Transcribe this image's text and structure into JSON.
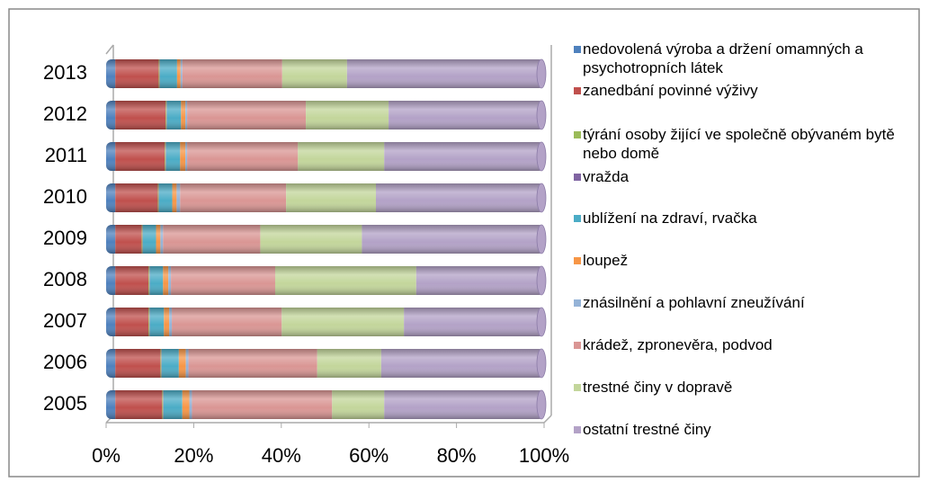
{
  "chart_data": {
    "type": "bar",
    "orientation": "horizontal",
    "stacked": "percent",
    "categories": [
      "2005",
      "2006",
      "2007",
      "2008",
      "2009",
      "2010",
      "2011",
      "2012",
      "2013"
    ],
    "series": [
      {
        "name": "nedovolená výroba a držení omamných a psychotropních látek",
        "color": "#4f81bd",
        "values": [
          2.1,
          2.1,
          2.1,
          2.1,
          2.1,
          2.1,
          2.1,
          2.1,
          2.1
        ]
      },
      {
        "name": "zanedbání povinné výživy",
        "color": "#c0504d",
        "values": [
          10.7,
          10.3,
          7.6,
          7.6,
          6.0,
          9.7,
          11.3,
          11.5,
          9.9
        ]
      },
      {
        "name": "týrání osoby žijící ve společně obývaném bytě nebo domě",
        "color": "#9bbb59",
        "values": [
          0.2,
          0.2,
          0.2,
          0.2,
          0.2,
          0.2,
          0.2,
          0.2,
          0.2
        ]
      },
      {
        "name": "vražda",
        "color": "#8064a2",
        "values": [
          0.1,
          0.1,
          0.1,
          0.1,
          0.1,
          0.1,
          0.1,
          0.1,
          0.1
        ]
      },
      {
        "name": "ublížení na zdraví, rvačka",
        "color": "#4bacc6",
        "values": [
          4.3,
          3.9,
          3.2,
          3.0,
          3.0,
          3.0,
          3.2,
          3.2,
          3.9
        ]
      },
      {
        "name": "loupež",
        "color": "#f79646",
        "values": [
          1.6,
          1.6,
          1.2,
          1.2,
          1.0,
          1.0,
          1.2,
          1.0,
          0.8
        ]
      },
      {
        "name": "znásilnění a pohlavní zneužívání",
        "color": "#95b3d7",
        "values": [
          0.6,
          0.6,
          0.6,
          0.6,
          0.6,
          0.8,
          0.4,
          0.4,
          0.4
        ]
      },
      {
        "name": "krádež, zpronevěra, podvod",
        "color": "#da9694",
        "values": [
          32.0,
          29.4,
          25.1,
          23.8,
          22.2,
          24.2,
          25.3,
          27.1,
          22.8
        ]
      },
      {
        "name": "trestné činy v dopravě",
        "color": "#c3d69b",
        "values": [
          11.9,
          14.6,
          27.9,
          32.2,
          23.2,
          20.5,
          19.7,
          18.9,
          14.8
        ]
      },
      {
        "name": "ostatní trestné činy",
        "color": "#b3a2c7",
        "values": [
          36.5,
          37.2,
          32.0,
          29.2,
          41.6,
          38.4,
          36.5,
          35.5,
          45.0
        ]
      }
    ],
    "xlim": [
      0,
      100
    ],
    "xticks": [
      {
        "value": 0,
        "label": "0%"
      },
      {
        "value": 20,
        "label": "20%"
      },
      {
        "value": 40,
        "label": "40%"
      },
      {
        "value": 60,
        "label": "60%"
      },
      {
        "value": 80,
        "label": "80%"
      },
      {
        "value": 100,
        "label": "100%"
      }
    ],
    "legend": "right"
  }
}
